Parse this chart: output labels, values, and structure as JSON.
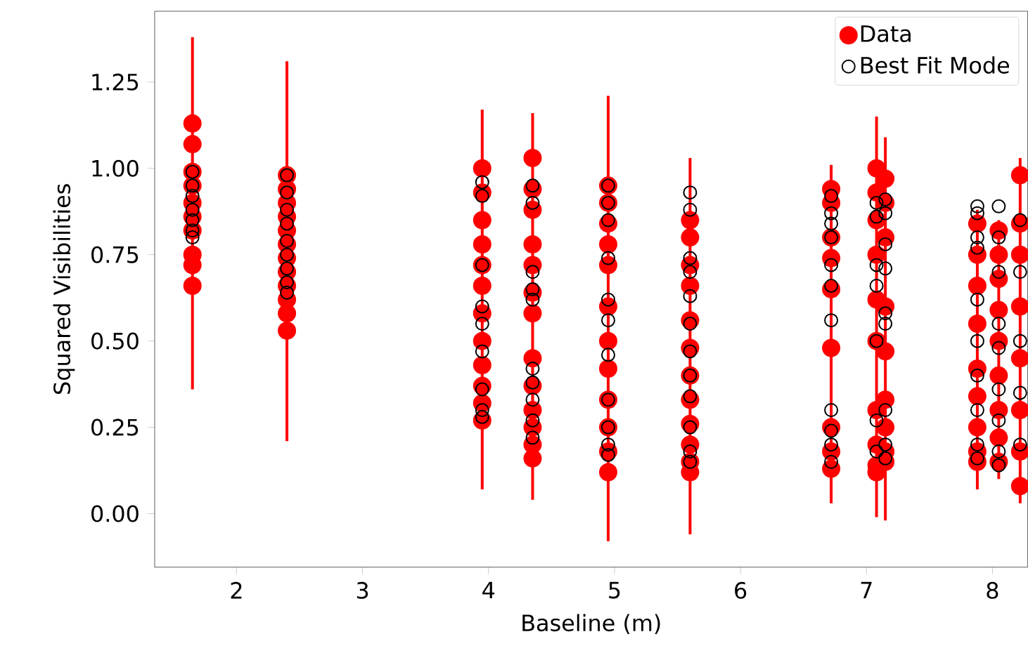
{
  "chart_data": {
    "type": "scatter",
    "xlabel": "Baseline (m)",
    "ylabel": "Squared Visibilities",
    "xlim": [
      1.35,
      8.28
    ],
    "ylim": [
      -0.155,
      1.455
    ],
    "xticks": [
      2,
      3,
      4,
      5,
      6,
      7,
      8
    ],
    "yticks": [
      {
        "value": 0,
        "label": "0.00"
      },
      {
        "value": 0.25,
        "label": "0.25"
      },
      {
        "value": 0.5,
        "label": "0.50"
      },
      {
        "value": 0.75,
        "label": "0.75"
      },
      {
        "value": 1,
        "label": "1.00"
      },
      {
        "value": 1.25,
        "label": "1.25"
      }
    ],
    "legend": "top right",
    "marker": "circle",
    "grid": false,
    "series": [
      {
        "name": "Data",
        "color": "#ff0000",
        "x": [
          1.65,
          1.65,
          1.65,
          1.65,
          1.65,
          1.65,
          1.65,
          1.65,
          1.65,
          1.65,
          2.4,
          2.4,
          2.4,
          2.4,
          2.4,
          2.4,
          2.4,
          2.4,
          2.4,
          2.4,
          2.4,
          2.4,
          3.95,
          3.95,
          3.95,
          3.95,
          3.95,
          3.95,
          3.95,
          3.95,
          3.95,
          3.95,
          3.95,
          3.95,
          4.35,
          4.35,
          4.35,
          4.35,
          4.35,
          4.35,
          4.35,
          4.35,
          4.35,
          4.35,
          4.35,
          4.35,
          4.35,
          4.95,
          4.95,
          4.95,
          4.95,
          4.95,
          4.95,
          4.95,
          4.95,
          4.95,
          4.95,
          4.95,
          4.95,
          5.6,
          5.6,
          5.6,
          5.6,
          5.6,
          5.6,
          5.6,
          5.6,
          5.6,
          5.6,
          5.6,
          5.6,
          6.72,
          6.72,
          6.72,
          6.72,
          6.72,
          6.72,
          6.72,
          6.72,
          6.72,
          7.08,
          7.08,
          7.08,
          7.08,
          7.08,
          7.08,
          7.08,
          7.08,
          7.08,
          7.08,
          7.15,
          7.15,
          7.15,
          7.15,
          7.15,
          7.15,
          7.15,
          7.15,
          7.15,
          7.88,
          7.88,
          7.88,
          7.88,
          7.88,
          7.88,
          7.88,
          7.88,
          7.88,
          8.05,
          8.05,
          8.05,
          8.05,
          8.05,
          8.05,
          8.05,
          8.05,
          8.05,
          8.22,
          8.22,
          8.22,
          8.22,
          8.22,
          8.22,
          8.22,
          8.22
        ],
        "values": [
          1.13,
          1.07,
          0.99,
          0.95,
          0.9,
          0.86,
          0.82,
          0.75,
          0.72,
          0.66,
          0.98,
          0.94,
          0.9,
          0.86,
          0.82,
          0.78,
          0.74,
          0.7,
          0.66,
          0.62,
          0.58,
          0.53,
          1.0,
          0.93,
          0.85,
          0.78,
          0.72,
          0.66,
          0.58,
          0.5,
          0.43,
          0.37,
          0.32,
          0.27,
          1.03,
          0.94,
          0.88,
          0.78,
          0.72,
          0.64,
          0.58,
          0.45,
          0.37,
          0.3,
          0.25,
          0.2,
          0.16,
          0.95,
          0.9,
          0.84,
          0.78,
          0.72,
          0.6,
          0.5,
          0.42,
          0.33,
          0.25,
          0.18,
          0.12,
          0.85,
          0.8,
          0.72,
          0.66,
          0.56,
          0.48,
          0.4,
          0.33,
          0.26,
          0.2,
          0.15,
          0.12,
          0.94,
          0.9,
          0.8,
          0.74,
          0.65,
          0.48,
          0.25,
          0.18,
          0.13,
          1.0,
          0.93,
          0.85,
          0.75,
          0.62,
          0.5,
          0.3,
          0.2,
          0.14,
          0.12,
          0.97,
          0.9,
          0.8,
          0.6,
          0.47,
          0.33,
          0.25,
          0.18,
          0.15,
          0.84,
          0.75,
          0.66,
          0.55,
          0.42,
          0.34,
          0.25,
          0.18,
          0.15,
          0.82,
          0.75,
          0.68,
          0.59,
          0.5,
          0.4,
          0.3,
          0.22,
          0.15,
          0.98,
          0.84,
          0.75,
          0.6,
          0.45,
          0.3,
          0.18,
          0.08
        ],
        "errors": [
          [
            0.36,
            1.38
          ],
          null,
          null,
          null,
          null,
          null,
          null,
          null,
          null,
          null,
          [
            0.21,
            1.31
          ],
          null,
          null,
          null,
          null,
          null,
          null,
          null,
          null,
          null,
          null,
          null,
          [
            0.07,
            1.17
          ],
          null,
          null,
          null,
          null,
          null,
          null,
          null,
          null,
          null,
          null,
          null,
          [
            0.04,
            1.16
          ],
          null,
          null,
          null,
          null,
          null,
          null,
          null,
          null,
          null,
          null,
          null,
          null,
          [
            -0.08,
            1.21
          ],
          null,
          null,
          null,
          null,
          null,
          null,
          null,
          null,
          null,
          null,
          null,
          [
            -0.06,
            1.03
          ],
          null,
          null,
          null,
          null,
          null,
          null,
          null,
          null,
          null,
          null,
          null,
          [
            0.03,
            1.01
          ],
          null,
          null,
          null,
          null,
          null,
          null,
          null,
          null,
          [
            -0.01,
            1.15
          ],
          null,
          null,
          null,
          null,
          null,
          null,
          null,
          null,
          null,
          [
            -0.02,
            1.09
          ],
          null,
          null,
          null,
          null,
          null,
          null,
          null,
          null,
          [
            0.07,
            0.88
          ],
          null,
          null,
          null,
          null,
          null,
          null,
          null,
          null,
          [
            0.1,
            0.85
          ],
          null,
          null,
          null,
          null,
          null,
          null,
          null,
          null,
          [
            0.03,
            1.03
          ],
          null,
          null,
          null,
          null,
          null,
          null,
          null
        ]
      },
      {
        "name": "Best Fit Mode",
        "color": "#000000",
        "x": [
          1.65,
          1.65,
          1.65,
          1.65,
          1.65,
          1.65,
          1.65,
          2.4,
          2.4,
          2.4,
          2.4,
          2.4,
          2.4,
          2.4,
          2.4,
          2.4,
          3.95,
          3.95,
          3.95,
          3.95,
          3.95,
          3.95,
          3.95,
          3.95,
          3.95,
          4.35,
          4.35,
          4.35,
          4.35,
          4.35,
          4.35,
          4.35,
          4.35,
          4.35,
          4.35,
          4.95,
          4.95,
          4.95,
          4.95,
          4.95,
          4.95,
          4.95,
          4.95,
          4.95,
          4.95,
          4.95,
          5.6,
          5.6,
          5.6,
          5.6,
          5.6,
          5.6,
          5.6,
          5.6,
          5.6,
          5.6,
          5.6,
          5.6,
          6.72,
          6.72,
          6.72,
          6.72,
          6.72,
          6.72,
          6.72,
          6.72,
          6.72,
          6.72,
          6.72,
          7.08,
          7.08,
          7.08,
          7.08,
          7.08,
          7.08,
          7.08,
          7.15,
          7.15,
          7.15,
          7.15,
          7.15,
          7.15,
          7.15,
          7.15,
          7.15,
          7.88,
          7.88,
          7.88,
          7.88,
          7.88,
          7.88,
          7.88,
          7.88,
          7.88,
          7.88,
          8.05,
          8.05,
          8.05,
          8.05,
          8.05,
          8.05,
          8.05,
          8.05,
          8.05,
          8.22,
          8.22,
          8.22,
          8.22,
          8.22
        ],
        "values": [
          0.99,
          0.95,
          0.92,
          0.88,
          0.85,
          0.82,
          0.8,
          0.98,
          0.93,
          0.88,
          0.84,
          0.79,
          0.75,
          0.71,
          0.67,
          0.64,
          0.96,
          0.92,
          0.72,
          0.6,
          0.55,
          0.47,
          0.36,
          0.3,
          0.28,
          0.95,
          0.9,
          0.7,
          0.65,
          0.62,
          0.42,
          0.38,
          0.33,
          0.27,
          0.22,
          0.95,
          0.9,
          0.85,
          0.74,
          0.62,
          0.56,
          0.46,
          0.33,
          0.25,
          0.2,
          0.17,
          0.93,
          0.88,
          0.74,
          0.7,
          0.63,
          0.55,
          0.47,
          0.4,
          0.34,
          0.25,
          0.18,
          0.15,
          0.92,
          0.87,
          0.84,
          0.8,
          0.72,
          0.66,
          0.56,
          0.3,
          0.24,
          0.2,
          0.15,
          0.9,
          0.86,
          0.72,
          0.66,
          0.5,
          0.27,
          0.18,
          0.91,
          0.87,
          0.78,
          0.71,
          0.58,
          0.55,
          0.3,
          0.2,
          0.16,
          0.89,
          0.87,
          0.8,
          0.77,
          0.62,
          0.5,
          0.4,
          0.3,
          0.2,
          0.16,
          0.89,
          0.8,
          0.7,
          0.55,
          0.48,
          0.36,
          0.27,
          0.18,
          0.14,
          0.85,
          0.7,
          0.5,
          0.35,
          0.2
        ]
      }
    ]
  }
}
